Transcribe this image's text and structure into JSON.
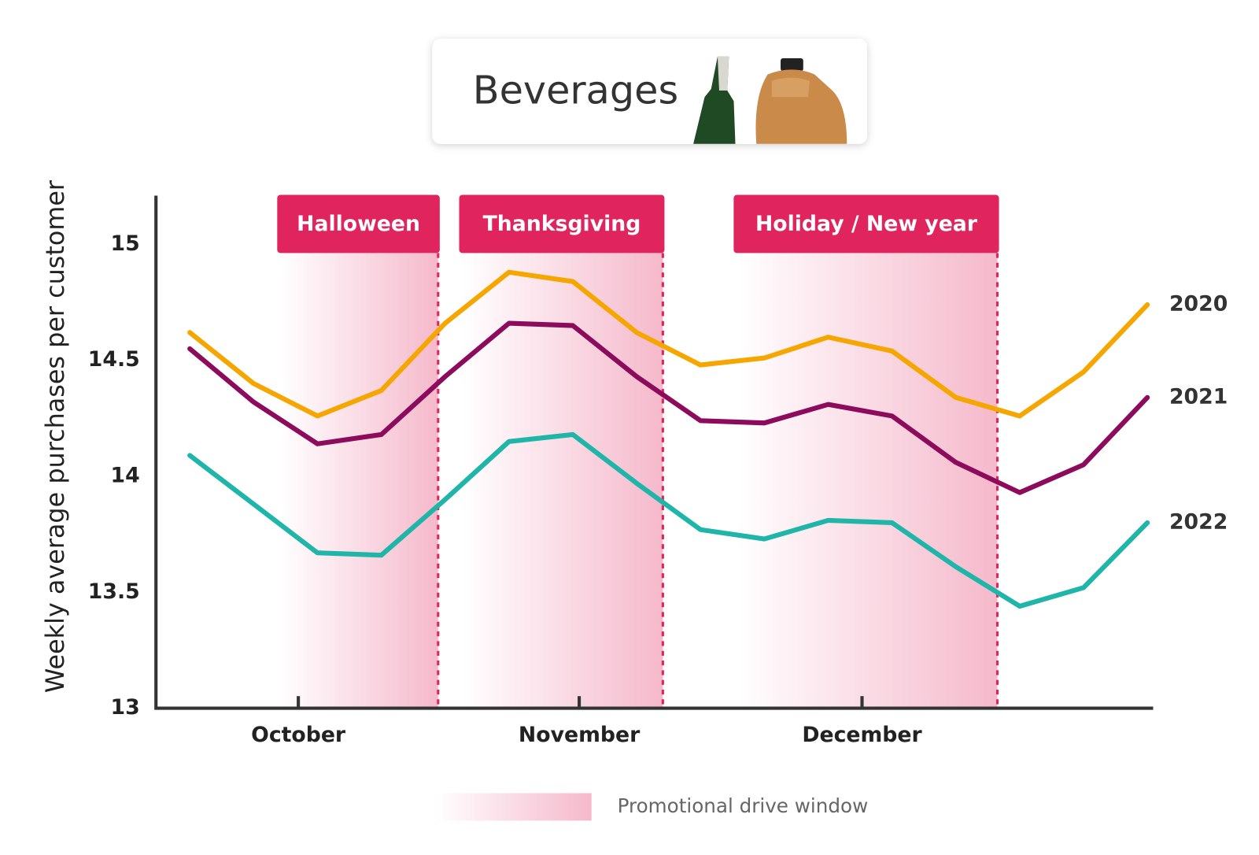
{
  "chart_data": {
    "type": "line",
    "title": "Beverages",
    "y_label": "Weekly average purchases per customer",
    "xlim": [
      -0.53,
      15.09
    ],
    "xticks": [
      {
        "value": 1.7,
        "label": "October"
      },
      {
        "value": 6.1,
        "label": "November"
      },
      {
        "value": 10.53,
        "label": "December"
      }
    ],
    "ylim": [
      13,
      15.21
    ],
    "yticks": [
      13,
      13.5,
      14,
      14.5,
      15
    ],
    "series": [
      {
        "name": "2020",
        "color": "#f5a600",
        "values": [
          14.62,
          14.4,
          14.26,
          14.37,
          14.66,
          14.88,
          14.84,
          14.62,
          14.48,
          14.51,
          14.6,
          14.54,
          14.34,
          14.26,
          14.45,
          14.74
        ]
      },
      {
        "name": "2021",
        "color": "#8c0b5c",
        "values": [
          14.55,
          14.32,
          14.14,
          14.18,
          14.43,
          14.66,
          14.65,
          14.43,
          14.24,
          14.23,
          14.31,
          14.26,
          14.06,
          13.93,
          14.05,
          14.34
        ]
      },
      {
        "name": "2022",
        "color": "#1fb5a8",
        "values": [
          14.09,
          13.88,
          13.67,
          13.66,
          13.9,
          14.15,
          14.18,
          13.97,
          13.77,
          13.73,
          13.81,
          13.8,
          13.61,
          13.44,
          13.52,
          13.8
        ]
      }
    ],
    "windows": [
      {
        "label": "Halloween",
        "start": 1.42,
        "end": 3.89
      },
      {
        "label": "Thanksgiving",
        "start": 4.27,
        "end": 7.41
      },
      {
        "label": "Holiday / New year",
        "start": 8.57,
        "end": 12.65
      }
    ],
    "window_color": "#e0245e",
    "legend_label": "Promotional drive window"
  }
}
